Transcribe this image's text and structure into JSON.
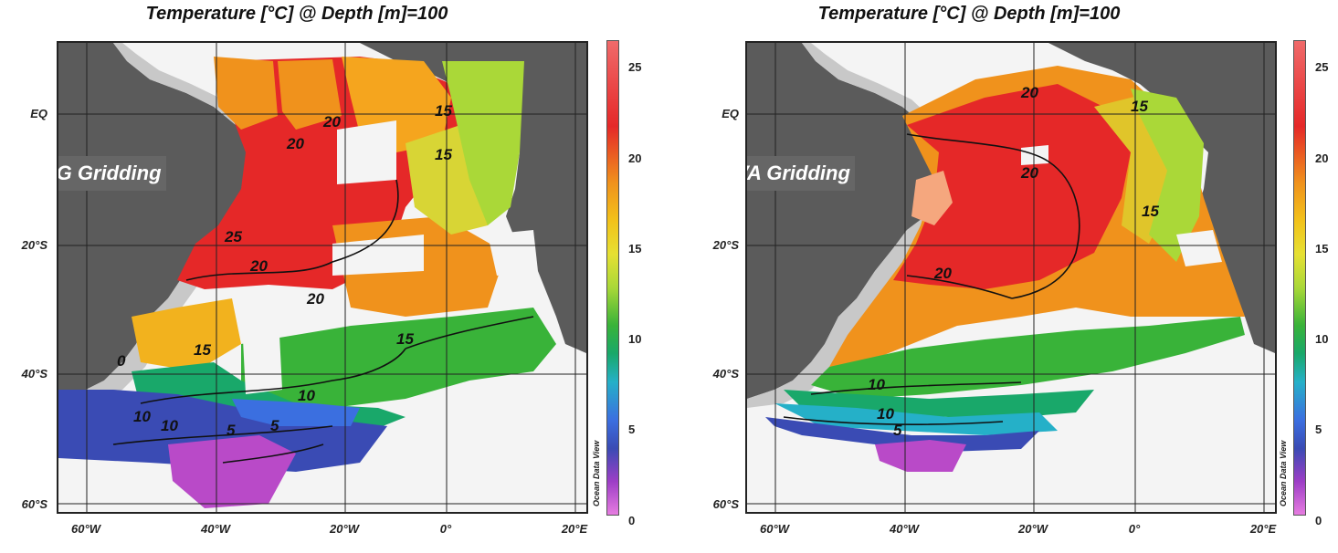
{
  "panels": [
    {
      "title": "Temperature [°C] @ Depth [m]=100",
      "method_label": "VG Gridding"
    },
    {
      "title": "Temperature [°C] @ Depth [m]=100",
      "method_label": "DIVA Gridding"
    }
  ],
  "lat_labels": [
    "EQ",
    "20°S",
    "40°S",
    "60°S"
  ],
  "lon_labels": [
    "60°W",
    "40°W",
    "20°W",
    "0°",
    "20°E"
  ],
  "colorbar": {
    "ticks": [
      "25",
      "20",
      "15",
      "10",
      "5",
      "0"
    ],
    "credit": "Ocean Data View"
  },
  "contour_labels": {
    "vg": [
      "20",
      "20",
      "15",
      "15",
      "25",
      "20",
      "20",
      "15",
      "15",
      "10",
      "10",
      "10",
      "5",
      "5",
      "0"
    ],
    "diva": [
      "20",
      "15",
      "20",
      "15",
      "20",
      "10",
      "10",
      "5"
    ]
  },
  "colors": {
    "land": "#5b5b5b",
    "shelf": "#c8c8c8",
    "ocean_blank": "#f4f4f4",
    "warm": "#e52828",
    "orange": "#f0921c",
    "green": "#39b339",
    "blue": "#3a4bb4",
    "purple": "#b94ac8"
  }
}
